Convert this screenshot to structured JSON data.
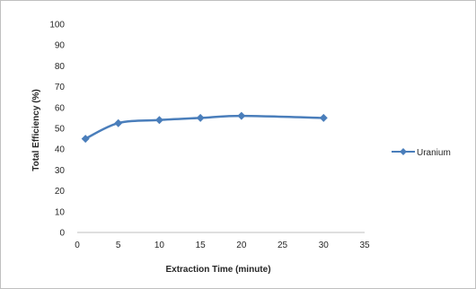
{
  "chart_data": {
    "type": "line",
    "title": "",
    "xlabel": "Extraction Time (minute)",
    "ylabel": "Total Efficiency (%)",
    "xlim": [
      0,
      35
    ],
    "ylim": [
      0,
      100
    ],
    "xticks": [
      0,
      5,
      10,
      15,
      20,
      25,
      30,
      35
    ],
    "yticks": [
      0,
      10,
      20,
      30,
      40,
      50,
      60,
      70,
      80,
      90,
      100
    ],
    "grid": false,
    "legend_position": "right",
    "series": [
      {
        "name": "Uranium",
        "color": "#4a7ebb",
        "marker": "diamond",
        "x": [
          1,
          5,
          10,
          15,
          20,
          30
        ],
        "y": [
          45,
          52.5,
          54,
          55,
          56,
          55
        ]
      }
    ]
  }
}
